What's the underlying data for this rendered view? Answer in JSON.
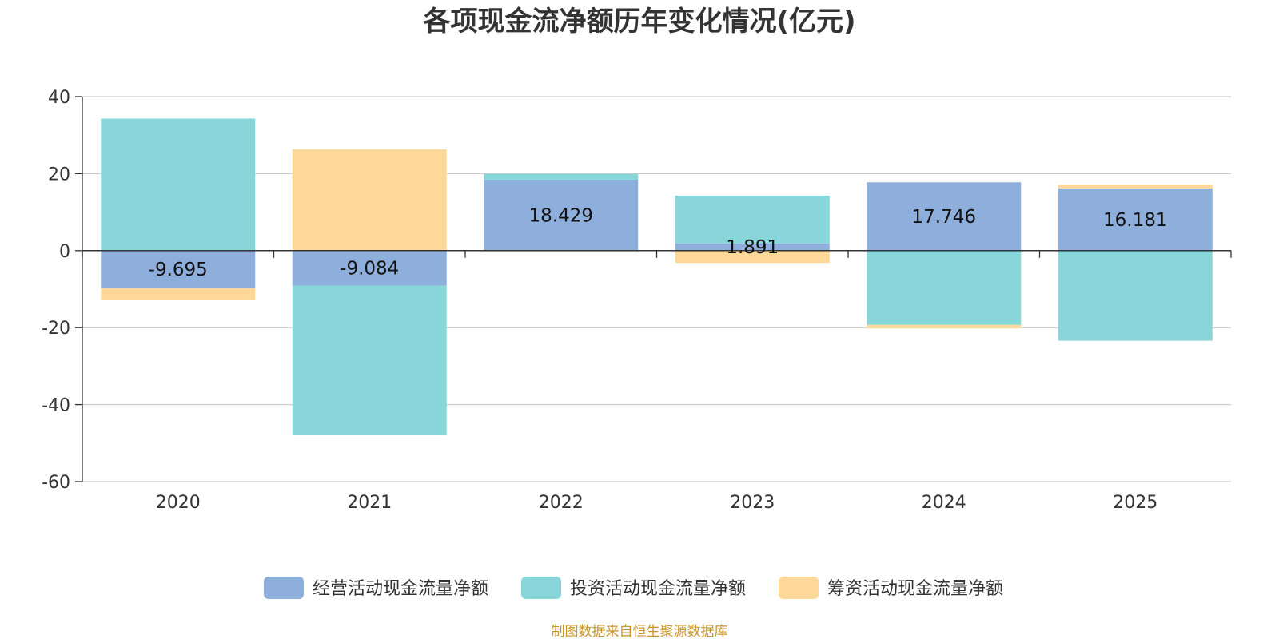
{
  "chart_data": {
    "type": "bar",
    "stacked": true,
    "title": "各项现金流净额历年变化情况(亿元)",
    "categories": [
      "2020",
      "2021",
      "2022",
      "2023",
      "2024",
      "2025"
    ],
    "y_ticks": [
      "40",
      "20",
      "0",
      "-20",
      "-40",
      "-60"
    ],
    "ylim": [
      -60,
      40
    ],
    "series": [
      {
        "name": "经营活动现金流量净额",
        "color": "#8eaedb",
        "values": [
          -9.695,
          -9.084,
          18.429,
          1.891,
          17.746,
          16.181
        ]
      },
      {
        "name": "投资活动现金流量净额",
        "color": "#88d6d9",
        "values": [
          34.3,
          -38.7,
          1.5,
          12.4,
          -19.3,
          -23.4
        ]
      },
      {
        "name": "筹资活动现金流量净额",
        "color": "#fed898",
        "values": [
          -3.2,
          26.3,
          -0.2,
          -3.2,
          -0.9,
          0.9
        ]
      }
    ],
    "data_labels": [
      "-9.695",
      "-9.084",
      "18.429",
      "1.891",
      "17.746",
      "16.181"
    ],
    "legend_position": "bottom",
    "grid": true
  },
  "source_note": "制图数据来自恒生聚源数据库"
}
